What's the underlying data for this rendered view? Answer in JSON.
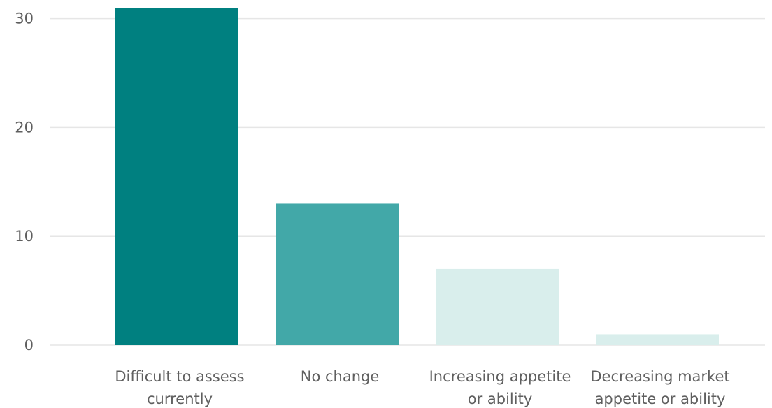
{
  "chart_data": {
    "type": "bar",
    "title": "",
    "xlabel": "",
    "ylabel": "",
    "ylim": [
      0,
      31
    ],
    "yticks": [
      0,
      10,
      20,
      30
    ],
    "grid": true,
    "categories": [
      [
        "Difficult to assess",
        "currently"
      ],
      [
        "No change"
      ],
      [
        "Increasing appetite",
        "or ability"
      ],
      [
        "Decreasing market",
        "appetite or ability"
      ]
    ],
    "values": [
      31,
      13,
      7,
      1
    ],
    "colors": [
      "#008080",
      "#42a8a8",
      "#d9eeec",
      "#d9eeec"
    ]
  }
}
